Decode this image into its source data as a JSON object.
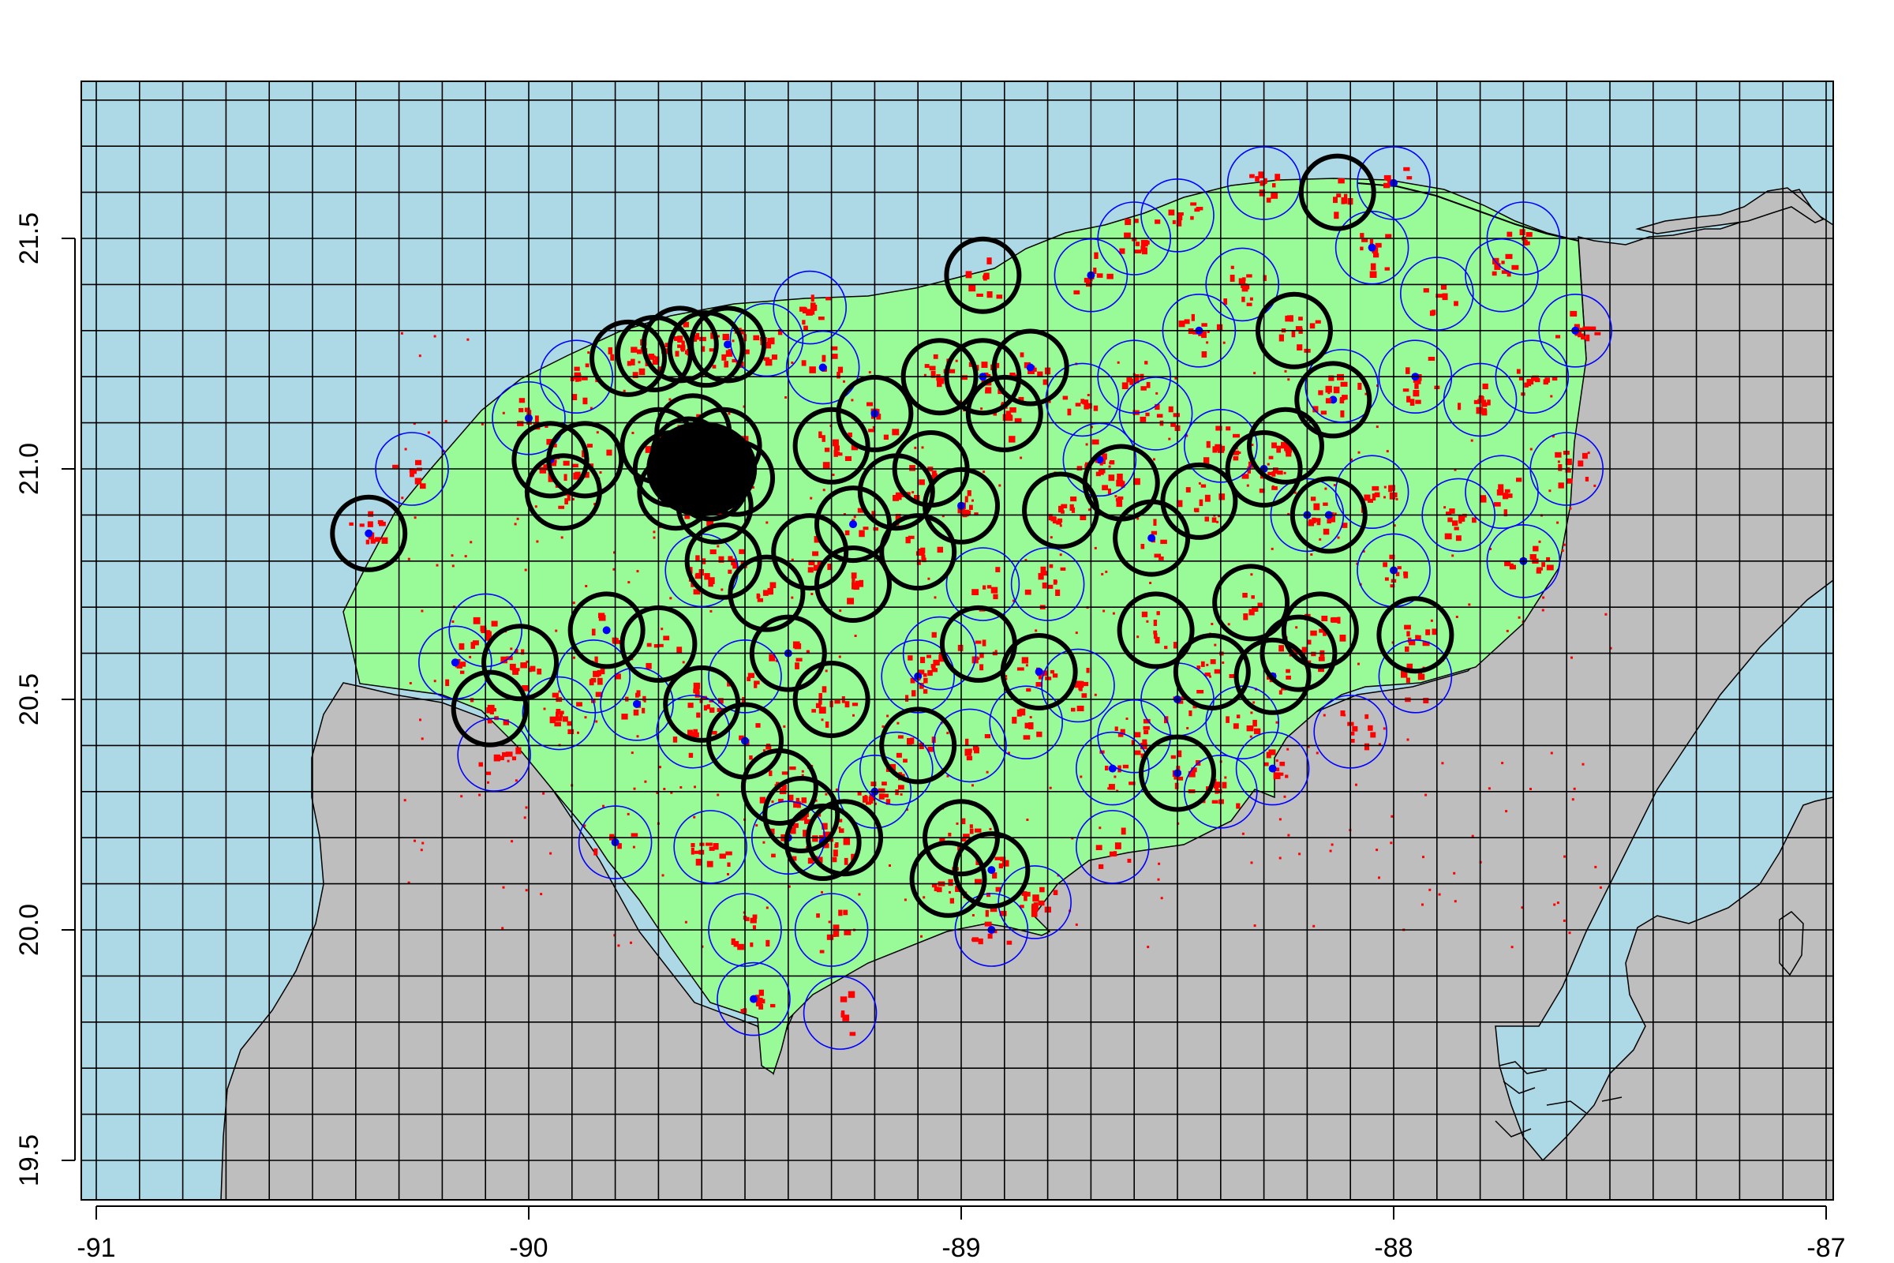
{
  "chart_data": {
    "type": "scatter",
    "title": "",
    "xlabel": "",
    "ylabel": "",
    "xlim": [
      -91.04,
      -86.96
    ],
    "ylim": [
      19.41,
      21.84
    ],
    "x_ticks": [
      "-91",
      "-90",
      "-89",
      "-88",
      "-87"
    ],
    "y_ticks": [
      "19.5",
      "20.0",
      "20.5",
      "21.0",
      "21.5"
    ],
    "grid": "on, 0.1 degree spacing",
    "colors": {
      "sea": "#add8e6",
      "land": "#bebebe",
      "study_area": "#98fb98",
      "urban_cells": "#ff0000",
      "urban_core": "#0000ff",
      "sample_buffers": "#000000",
      "empty_buffers": "#0000ff",
      "grid_lines": "#000000"
    },
    "series": [
      {
        "kind": "thick-black-circles",
        "points": [
          [
            -89.63,
            21.03
          ],
          [
            -89.6,
            20.99
          ],
          [
            -89.55,
            21.05
          ],
          [
            -89.66,
            20.95
          ],
          [
            -89.58,
            20.97
          ],
          [
            -89.7,
            21.05
          ],
          [
            -89.52,
            20.98
          ],
          [
            -89.62,
            21.08
          ],
          [
            -89.67,
            21.0
          ],
          [
            -89.57,
            20.92
          ],
          [
            -89.59,
            21.26
          ],
          [
            -89.65,
            21.27
          ],
          [
            -89.54,
            21.27
          ],
          [
            -89.71,
            21.25
          ],
          [
            -89.77,
            21.24
          ],
          [
            -90.37,
            20.86
          ],
          [
            -89.92,
            20.95
          ],
          [
            -89.87,
            21.02
          ],
          [
            -89.95,
            21.02
          ],
          [
            -90.02,
            20.58
          ],
          [
            -90.09,
            20.48
          ],
          [
            -89.82,
            20.65
          ],
          [
            -89.7,
            20.62
          ],
          [
            -89.6,
            20.49
          ],
          [
            -89.5,
            20.41
          ],
          [
            -89.42,
            20.31
          ],
          [
            -89.37,
            20.25
          ],
          [
            -89.32,
            20.19
          ],
          [
            -89.27,
            20.2
          ],
          [
            -89.03,
            20.11
          ],
          [
            -88.93,
            20.13
          ],
          [
            -89.0,
            20.2
          ],
          [
            -89.35,
            20.82
          ],
          [
            -89.25,
            20.88
          ],
          [
            -89.15,
            20.95
          ],
          [
            -89.3,
            21.05
          ],
          [
            -89.2,
            21.12
          ],
          [
            -89.07,
            21.0
          ],
          [
            -89.1,
            20.82
          ],
          [
            -89.0,
            20.92
          ],
          [
            -89.25,
            20.75
          ],
          [
            -89.05,
            21.2
          ],
          [
            -88.95,
            21.2
          ],
          [
            -88.9,
            21.12
          ],
          [
            -88.95,
            21.42
          ],
          [
            -88.84,
            21.22
          ],
          [
            -88.77,
            20.91
          ],
          [
            -88.63,
            20.97
          ],
          [
            -88.56,
            20.85
          ],
          [
            -88.45,
            20.93
          ],
          [
            -88.55,
            20.65
          ],
          [
            -88.82,
            20.56
          ],
          [
            -88.96,
            20.62
          ],
          [
            -89.1,
            20.4
          ],
          [
            -88.5,
            20.34
          ],
          [
            -88.42,
            20.56
          ],
          [
            -88.33,
            20.71
          ],
          [
            -88.3,
            21.0
          ],
          [
            -88.25,
            21.05
          ],
          [
            -88.23,
            21.3
          ],
          [
            -88.14,
            21.15
          ],
          [
            -88.17,
            20.65
          ],
          [
            -88.22,
            20.6
          ],
          [
            -88.28,
            20.55
          ],
          [
            -87.95,
            20.64
          ],
          [
            -88.13,
            21.6
          ],
          [
            -88.15,
            20.9
          ],
          [
            -89.45,
            20.73
          ],
          [
            -89.55,
            20.8
          ],
          [
            -89.4,
            20.6
          ],
          [
            -89.3,
            20.5
          ]
        ]
      },
      {
        "kind": "thin-blue-circles",
        "points": [
          [
            -90.27,
            21.0
          ],
          [
            -90.0,
            21.11
          ],
          [
            -89.89,
            21.2
          ],
          [
            -90.1,
            20.65
          ],
          [
            -90.17,
            20.58
          ],
          [
            -90.08,
            20.38
          ],
          [
            -89.93,
            20.47
          ],
          [
            -89.75,
            20.49
          ],
          [
            -89.62,
            20.43
          ],
          [
            -89.5,
            20.55
          ],
          [
            -89.8,
            20.19
          ],
          [
            -89.58,
            20.18
          ],
          [
            -89.5,
            20.0
          ],
          [
            -89.48,
            19.85
          ],
          [
            -89.28,
            19.82
          ],
          [
            -89.3,
            20.0
          ],
          [
            -89.2,
            20.3
          ],
          [
            -89.05,
            20.6
          ],
          [
            -88.98,
            20.4
          ],
          [
            -88.93,
            20.0
          ],
          [
            -88.83,
            20.06
          ],
          [
            -88.73,
            20.53
          ],
          [
            -88.65,
            20.35
          ],
          [
            -88.6,
            20.42
          ],
          [
            -88.65,
            20.18
          ],
          [
            -88.5,
            20.5
          ],
          [
            -88.4,
            20.3
          ],
          [
            -88.35,
            20.45
          ],
          [
            -88.28,
            20.35
          ],
          [
            -88.1,
            20.43
          ],
          [
            -87.95,
            20.55
          ],
          [
            -88.0,
            20.78
          ],
          [
            -88.05,
            20.95
          ],
          [
            -88.12,
            21.18
          ],
          [
            -87.95,
            21.2
          ],
          [
            -87.8,
            21.15
          ],
          [
            -87.68,
            21.2
          ],
          [
            -87.58,
            21.3
          ],
          [
            -87.6,
            21.0
          ],
          [
            -87.75,
            20.95
          ],
          [
            -87.7,
            20.8
          ],
          [
            -87.85,
            20.9
          ],
          [
            -87.9,
            21.38
          ],
          [
            -88.0,
            21.62
          ],
          [
            -87.7,
            21.5
          ],
          [
            -87.75,
            21.42
          ],
          [
            -88.05,
            21.48
          ],
          [
            -88.35,
            21.4
          ],
          [
            -88.6,
            21.5
          ],
          [
            -88.7,
            21.42
          ],
          [
            -88.5,
            21.55
          ],
          [
            -88.3,
            21.62
          ],
          [
            -88.45,
            21.3
          ],
          [
            -88.6,
            21.2
          ],
          [
            -88.72,
            21.15
          ],
          [
            -88.68,
            21.02
          ],
          [
            -88.55,
            21.12
          ],
          [
            -88.4,
            21.05
          ],
          [
            -88.2,
            20.9
          ],
          [
            -88.8,
            20.75
          ],
          [
            -88.95,
            20.75
          ],
          [
            -89.1,
            20.55
          ],
          [
            -89.35,
            21.35
          ],
          [
            -89.45,
            21.28
          ],
          [
            -89.32,
            21.22
          ],
          [
            -89.85,
            20.55
          ],
          [
            -89.6,
            20.78
          ],
          [
            -89.4,
            20.2
          ],
          [
            -89.15,
            20.35
          ],
          [
            -88.85,
            20.45
          ]
        ]
      }
    ]
  }
}
